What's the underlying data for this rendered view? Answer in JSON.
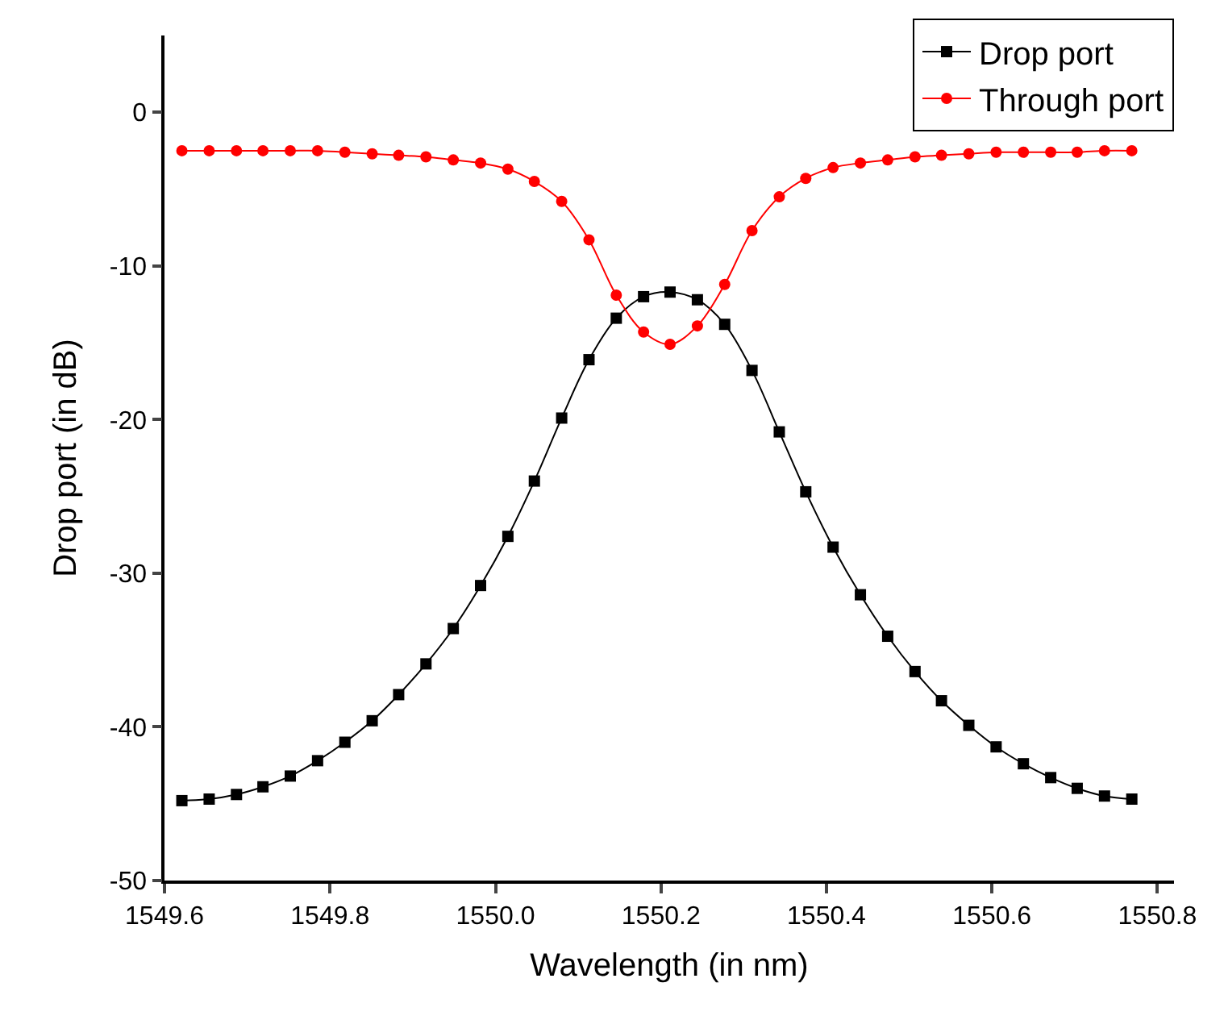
{
  "chart_data": {
    "type": "line",
    "xlabel": "Wavelength (in nm)",
    "ylabel": "Drop port (in dB)",
    "x": [
      1549.621,
      1549.654,
      1549.687,
      1549.719,
      1549.752,
      1549.785,
      1549.818,
      1549.851,
      1549.883,
      1549.916,
      1549.949,
      1549.982,
      1550.015,
      1550.047,
      1550.08,
      1550.113,
      1550.146,
      1550.179,
      1550.211,
      1550.244,
      1550.277,
      1550.31,
      1550.343,
      1550.375,
      1550.408,
      1550.441,
      1550.474,
      1550.507,
      1550.539,
      1550.572,
      1550.605,
      1550.638,
      1550.671,
      1550.703,
      1550.736,
      1550.769
    ],
    "series": [
      {
        "name": "Drop port",
        "color": "#000000",
        "marker": "square",
        "values": [
          -44.8,
          -44.7,
          -44.4,
          -43.9,
          -43.2,
          -42.2,
          -41.0,
          -39.6,
          -37.9,
          -35.9,
          -33.6,
          -30.8,
          -27.6,
          -24.0,
          -19.9,
          -16.1,
          -13.4,
          -12.0,
          -11.7,
          -12.2,
          -13.8,
          -16.8,
          -20.8,
          -24.7,
          -28.3,
          -31.4,
          -34.1,
          -36.4,
          -38.3,
          -39.9,
          -41.3,
          -42.4,
          -43.3,
          -44.0,
          -44.5,
          -44.7
        ]
      },
      {
        "name": "Through port",
        "color": "#ff0000",
        "marker": "circle",
        "values": [
          -2.5,
          -2.5,
          -2.5,
          -2.5,
          -2.5,
          -2.5,
          -2.6,
          -2.7,
          -2.8,
          -2.9,
          -3.1,
          -3.3,
          -3.7,
          -4.5,
          -5.8,
          -8.3,
          -11.9,
          -14.3,
          -15.1,
          -13.9,
          -11.2,
          -7.7,
          -5.5,
          -4.3,
          -3.6,
          -3.3,
          -3.1,
          -2.9,
          -2.8,
          -2.7,
          -2.6,
          -2.6,
          -2.6,
          -2.6,
          -2.5,
          -2.5
        ]
      }
    ],
    "xlim": [
      1549.6,
      1550.82
    ],
    "xticks": [
      {
        "value": 1549.6,
        "label": "1549.6"
      },
      {
        "value": 1549.8,
        "label": "1549.8"
      },
      {
        "value": 1550.0,
        "label": "1550.0"
      },
      {
        "value": 1550.2,
        "label": "1550.2"
      },
      {
        "value": 1550.4,
        "label": "1550.4"
      },
      {
        "value": 1550.6,
        "label": "1550.6"
      },
      {
        "value": 1550.8,
        "label": "1550.8"
      }
    ],
    "ylim": [
      -50,
      5
    ],
    "yticks": [
      -50,
      -40,
      -30,
      -20,
      -10,
      0
    ],
    "legend": "top right",
    "line_style": "solid"
  }
}
